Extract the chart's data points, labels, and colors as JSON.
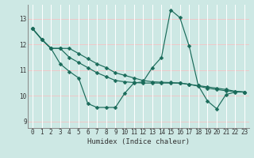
{
  "xlabel": "Humidex (Indice chaleur)",
  "bg_color": "#cde8e4",
  "grid_color_h": "#f0c8c8",
  "grid_color_v": "#ffffff",
  "line_color": "#1a6b5a",
  "xlim": [
    -0.5,
    23.5
  ],
  "ylim": [
    8.75,
    13.55
  ],
  "yticks": [
    9,
    10,
    11,
    12,
    13
  ],
  "xtick_vals": [
    0,
    1,
    2,
    3,
    4,
    5,
    6,
    7,
    8,
    9,
    10,
    11,
    12,
    13,
    14,
    15,
    16,
    17,
    18,
    19,
    20,
    21,
    22,
    23
  ],
  "series": [
    [
      12.62,
      12.2,
      11.85,
      11.85,
      11.85,
      11.65,
      11.45,
      11.25,
      11.1,
      10.9,
      10.8,
      10.7,
      10.6,
      10.55,
      10.53,
      10.52,
      10.5,
      10.45,
      10.38,
      10.3,
      10.25,
      10.2,
      10.17,
      10.15
    ],
    [
      12.62,
      12.2,
      11.85,
      11.85,
      11.5,
      11.3,
      11.1,
      10.9,
      10.75,
      10.6,
      10.55,
      10.52,
      10.5,
      10.5,
      10.5,
      10.5,
      10.5,
      10.45,
      10.4,
      10.35,
      10.3,
      10.25,
      10.18,
      10.15
    ],
    [
      12.62,
      12.2,
      11.85,
      11.25,
      10.95,
      10.7,
      9.7,
      9.55,
      9.55,
      9.55,
      10.1,
      10.5,
      10.55,
      11.1,
      11.5,
      13.35,
      13.05,
      11.95,
      10.4,
      9.8,
      9.5,
      10.05,
      10.15,
      10.15
    ]
  ]
}
